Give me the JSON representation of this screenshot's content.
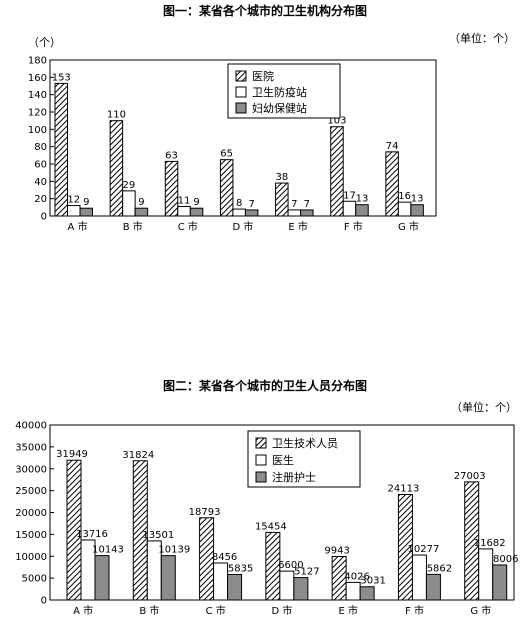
{
  "chart_data": [
    {
      "type": "bar",
      "title": "图一：某省各个城市的卫生机构分布图",
      "unit_label": "（单位：个）",
      "ylabel": "（个）",
      "categories": [
        "A 市",
        "B 市",
        "C 市",
        "D 市",
        "E 市",
        "F 市",
        "G 市"
      ],
      "series": [
        {
          "name": "医院",
          "values": [
            153,
            110,
            63,
            65,
            38,
            103,
            74
          ],
          "pattern": "hatch"
        },
        {
          "name": "卫生防疫站",
          "values": [
            12,
            29,
            11,
            8,
            7,
            17,
            16
          ],
          "pattern": "white"
        },
        {
          "name": "妇幼保健站",
          "values": [
            9,
            9,
            9,
            7,
            7,
            13,
            13
          ],
          "pattern": "gray"
        }
      ],
      "data_labels": [
        [
          "153",
          "12",
          "9"
        ],
        [
          "110",
          "29",
          "9"
        ],
        [
          "63",
          "11",
          "9"
        ],
        [
          "65",
          "8",
          "7"
        ],
        [
          "38",
          "7",
          "7"
        ],
        [
          "103",
          "17",
          "13"
        ],
        [
          "74",
          "16",
          "13"
        ]
      ],
      "yticks": [
        0,
        20,
        40,
        60,
        80,
        100,
        120,
        140,
        160,
        180
      ],
      "ylim": [
        0,
        180
      ],
      "legend_position": "top-center"
    },
    {
      "type": "bar",
      "title": "图二：某省各个城市的卫生人员分布图",
      "unit_label": "（单位：个）",
      "ylabel": "",
      "categories": [
        "A 市",
        "B 市",
        "C 市",
        "D 市",
        "E 市",
        "F 市",
        "G 市"
      ],
      "series": [
        {
          "name": "卫生技术人员",
          "values": [
            31949,
            31824,
            18793,
            15454,
            9943,
            24113,
            27003
          ],
          "pattern": "hatch"
        },
        {
          "name": "医生",
          "values": [
            13716,
            13501,
            8456,
            6600,
            4026,
            10277,
            11682
          ],
          "pattern": "white"
        },
        {
          "name": "注册护士",
          "values": [
            10143,
            10139,
            5835,
            5127,
            3031,
            5862,
            8006
          ],
          "pattern": "gray"
        }
      ],
      "yticks": [
        0,
        5000,
        10000,
        15000,
        20000,
        25000,
        30000,
        35000,
        40000
      ],
      "ylim": [
        0,
        40000
      ],
      "legend_position": "top-center"
    }
  ]
}
